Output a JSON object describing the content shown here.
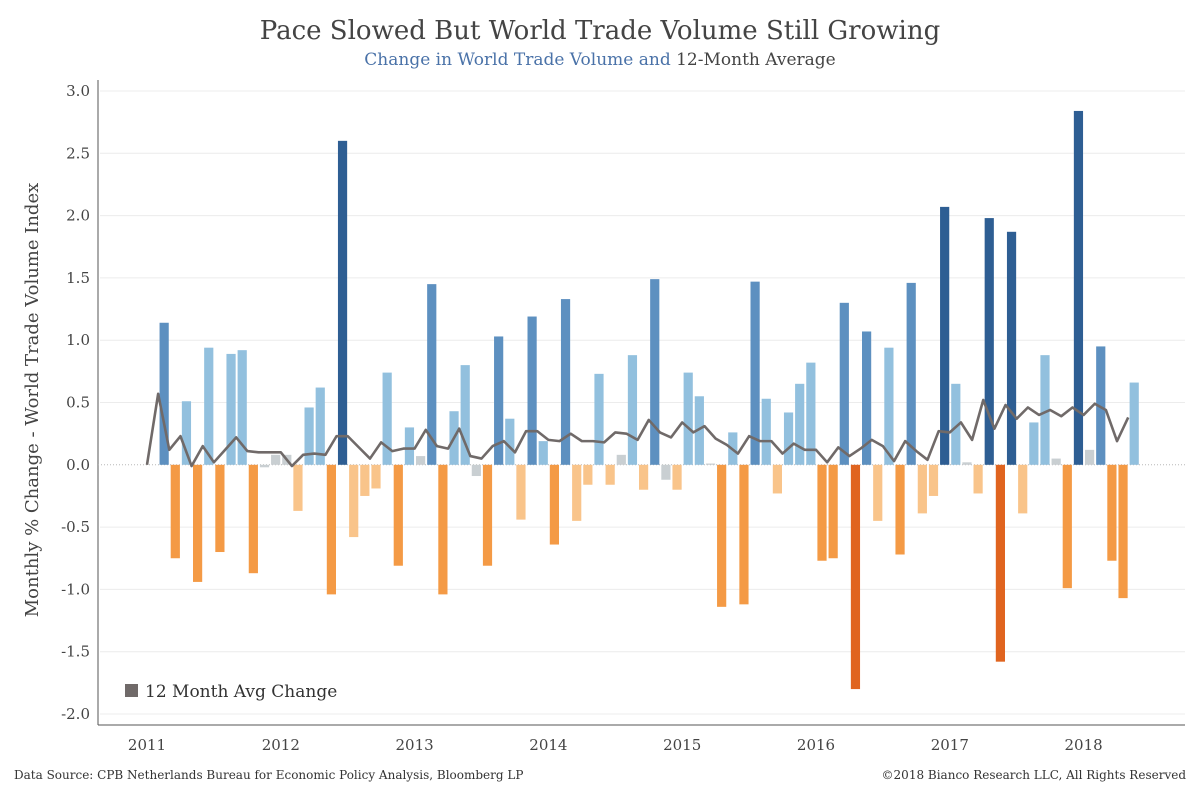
{
  "chart_data": {
    "type": "bar",
    "title": "Pace Slowed But World Trade Volume Still Growing",
    "subtitle_part1": "Change in World Trade Volume and",
    "subtitle_part2": "12-Month Average",
    "ylabel": "Monthly % Change - World Trade Volume Index",
    "ylim": [
      -2.0,
      3.0
    ],
    "yticks": [
      "3.0",
      "2.5",
      "2.0",
      "1.5",
      "1.0",
      "0.5",
      "0.0",
      "-0.5",
      "-1.0",
      "-1.5",
      "-2.0"
    ],
    "ytick_values": [
      3.0,
      2.5,
      2.0,
      1.5,
      1.0,
      0.5,
      0.0,
      -0.5,
      -1.0,
      -1.5,
      -2.0
    ],
    "xtick_labels": [
      "2011",
      "2012",
      "2013",
      "2014",
      "2015",
      "2016",
      "2017",
      "2018"
    ],
    "xtick_month_index": [
      0,
      12,
      24,
      36,
      48,
      60,
      72,
      84
    ],
    "series": [
      {
        "name": "Monthly % Change",
        "values": [
          0.0,
          1.14,
          -0.75,
          0.51,
          -0.94,
          0.94,
          -0.7,
          0.89,
          0.92,
          -0.87,
          -0.02,
          0.08,
          0.08,
          -0.37,
          0.46,
          0.62,
          -1.04,
          2.6,
          -0.58,
          -0.25,
          -0.19,
          0.74,
          -0.81,
          0.3,
          0.07,
          1.45,
          -1.04,
          0.43,
          0.8,
          -0.09,
          -0.81,
          1.03,
          0.37,
          -0.44,
          1.19,
          0.19,
          -0.64,
          1.33,
          -0.45,
          -0.16,
          0.73,
          -0.16,
          0.08,
          0.88,
          -0.2,
          1.49,
          -0.12,
          -0.2,
          0.74,
          0.55,
          0.01,
          -1.14,
          0.26,
          -1.12,
          1.47,
          0.53,
          -0.23,
          0.42,
          0.65,
          0.82,
          -0.77,
          -0.75,
          1.3,
          -1.8,
          1.07,
          -0.45,
          0.94,
          -0.72,
          1.46,
          -0.39,
          -0.25,
          2.07,
          0.65,
          0.02,
          -0.23,
          1.98,
          -1.58,
          1.87,
          -0.39,
          0.34,
          0.88,
          0.05,
          -0.99,
          2.84,
          0.12,
          0.95,
          -0.77,
          -1.07,
          0.66
        ]
      },
      {
        "name": "12 Month Avg Change",
        "values": [
          0.0,
          0.57,
          0.12,
          0.23,
          -0.01,
          0.15,
          0.02,
          0.12,
          0.22,
          0.11,
          0.1,
          0.1,
          0.1,
          -0.01,
          0.08,
          0.09,
          0.08,
          0.23,
          0.23,
          0.14,
          0.05,
          0.18,
          0.11,
          0.13,
          0.13,
          0.28,
          0.15,
          0.13,
          0.29,
          0.07,
          0.05,
          0.15,
          0.19,
          0.1,
          0.27,
          0.27,
          0.2,
          0.19,
          0.25,
          0.19,
          0.19,
          0.18,
          0.26,
          0.25,
          0.2,
          0.36,
          0.26,
          0.22,
          0.34,
          0.26,
          0.31,
          0.21,
          0.16,
          0.09,
          0.23,
          0.19,
          0.19,
          0.09,
          0.17,
          0.12,
          0.12,
          0.02,
          0.14,
          0.07,
          0.13,
          0.2,
          0.15,
          0.03,
          0.19,
          0.11,
          0.04,
          0.27,
          0.26,
          0.34,
          0.2,
          0.52,
          0.29,
          0.48,
          0.37,
          0.46,
          0.4,
          0.44,
          0.39,
          0.46,
          0.4,
          0.49,
          0.44,
          0.19,
          0.38
        ]
      }
    ],
    "legend": {
      "label": "12 Month Avg Change",
      "position": "bottom-left"
    },
    "colors": {
      "pos_light": "#92c0de",
      "pos_mid": "#5d90c0",
      "pos_dark": "#2e5e93",
      "neg_light": "#f9c48a",
      "neg_mid": "#f49a45",
      "neg_dark": "#e0641f",
      "neutral": "#c9cfd2",
      "avg_line": "#706a69",
      "grid": "#ececec",
      "zero_line": "#b8b8b8"
    },
    "grid": true
  },
  "footer": {
    "source": "Data Source: CPB Netherlands Bureau for Economic Policy Analysis, Bloomberg LP",
    "copyright": "©2018 Bianco Research LLC,  All Rights Reserved"
  }
}
